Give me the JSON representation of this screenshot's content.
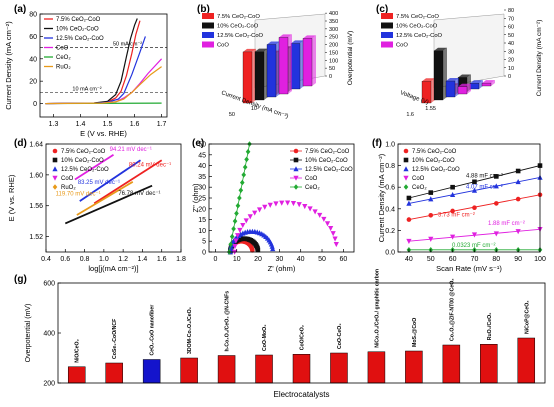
{
  "figure": {
    "panels": [
      "(a)",
      "(b)",
      "(c)",
      "(d)",
      "(e)",
      "(f)",
      "(g)"
    ]
  },
  "colors": {
    "CoO": "#e020e0",
    "7.5%": "#ee2222",
    "10%": "#111111",
    "12.5%": "#2233dd",
    "CeO2": "#22aa33",
    "RuO2": "#e89a1a",
    "other": "#e01010",
    "this_work": "#1414cc"
  },
  "chart_data": [
    {
      "panel": "(a)",
      "type": "line",
      "xlabel": "E (V vs. RHE)",
      "ylabel": "Current Density (mA cm⁻²)",
      "xlim": [
        1.25,
        1.72
      ],
      "ylim": [
        -12,
        80
      ],
      "xticks": [
        "1.3",
        "1.4",
        "1.5",
        "1.6",
        "1.7"
      ],
      "yticks": [
        "0",
        "20",
        "40",
        "60",
        "80"
      ],
      "legend_position": "top-left",
      "annotations": [
        "50 mA cm⁻²",
        "10 mA cm⁻²"
      ],
      "ref_lines": [
        50,
        10
      ],
      "series": [
        {
          "name": "7.5% CeO₂-CoO",
          "color_key": "7.5%",
          "points": [
            [
              1.27,
              0
            ],
            [
              1.45,
              0.4
            ],
            [
              1.5,
              1.5
            ],
            [
              1.53,
              5
            ],
            [
              1.55,
              11
            ],
            [
              1.57,
              25
            ],
            [
              1.59,
              45
            ],
            [
              1.605,
              62
            ],
            [
              1.62,
              74
            ]
          ]
        },
        {
          "name": "10% CeO₂-CoO",
          "color_key": "10%",
          "points": [
            [
              1.27,
              0
            ],
            [
              1.45,
              0.5
            ],
            [
              1.5,
              2
            ],
            [
              1.53,
              8
            ],
            [
              1.55,
              20
            ],
            [
              1.57,
              42
            ],
            [
              1.585,
              58
            ],
            [
              1.6,
              70
            ],
            [
              1.61,
              76
            ]
          ]
        },
        {
          "name": "12.5% CeO₂-CoO",
          "color_key": "12.5%",
          "points": [
            [
              1.27,
              0
            ],
            [
              1.45,
              0.3
            ],
            [
              1.5,
              1.2
            ],
            [
              1.54,
              4
            ],
            [
              1.56,
              9
            ],
            [
              1.59,
              26
            ],
            [
              1.62,
              46
            ],
            [
              1.64,
              60
            ]
          ]
        },
        {
          "name": "CoO",
          "color_key": "CoO",
          "points": [
            [
              1.27,
              0
            ],
            [
              1.48,
              0.4
            ],
            [
              1.53,
              1.5
            ],
            [
              1.56,
              5
            ],
            [
              1.59,
              10
            ],
            [
              1.62,
              18
            ],
            [
              1.65,
              27
            ],
            [
              1.7,
              40
            ]
          ]
        },
        {
          "name": "CeO₂",
          "color_key": "CeO2",
          "points": [
            [
              1.27,
              0
            ],
            [
              1.7,
              0.4
            ]
          ]
        },
        {
          "name": "RuO₂",
          "color_key": "RuO2",
          "points": [
            [
              1.27,
              0
            ],
            [
              1.48,
              0.4
            ],
            [
              1.53,
              1.5
            ],
            [
              1.56,
              4
            ],
            [
              1.59,
              10
            ],
            [
              1.62,
              17
            ],
            [
              1.66,
              26
            ],
            [
              1.7,
              33
            ]
          ]
        }
      ]
    },
    {
      "panel": "(b)",
      "type": "bar3d",
      "ylabel": "Overpotential (mV)",
      "xlabel": "Current Density (mA cm⁻²)",
      "zticks": [
        "0",
        "50",
        "100",
        "150",
        "200",
        "250",
        "300",
        "350",
        "400"
      ],
      "categories": [
        "10",
        "50"
      ],
      "legend_position": "top-left",
      "series": [
        {
          "name": "7.5% CeO₂-CoO",
          "color_key": "7.5%",
          "values": [
            300,
            370
          ]
        },
        {
          "name": "10% CeO₂-CoO",
          "color_key": "10%",
          "values": [
            310,
            350
          ]
        },
        {
          "name": "12.5% CeO₂-CoO",
          "color_key": "12.5%",
          "values": [
            330,
            380
          ]
        },
        {
          "name": "CoO",
          "color_key": "CoO",
          "values": [
            345,
            410
          ]
        }
      ]
    },
    {
      "panel": "(c)",
      "type": "bar3d",
      "ylabel": "Current Density (mA cm⁻²)",
      "xlabel": "Voltage (V)",
      "zticks": [
        "0",
        "10",
        "20",
        "30",
        "40",
        "50",
        "60",
        "70",
        "80"
      ],
      "categories": [
        "1.55",
        "1.6"
      ],
      "legend_position": "top-left",
      "series": [
        {
          "name": "7.5% CeO₂-CoO",
          "color_key": "7.5%",
          "values": [
            12,
            30
          ]
        },
        {
          "name": "10% CeO₂-CoO",
          "color_key": "10%",
          "values": [
            20,
            68
          ]
        },
        {
          "name": "12.5% CeO₂-CoO",
          "color_key": "12.5%",
          "values": [
            8,
            22
          ]
        },
        {
          "name": "CoO",
          "color_key": "CoO",
          "values": [
            4,
            10
          ]
        }
      ]
    },
    {
      "panel": "(d)",
      "type": "line",
      "xlabel": "log[j(mA cm⁻²)]",
      "ylabel": "E (V vs. RHE)",
      "xlim": [
        0.4,
        1.8
      ],
      "ylim": [
        1.5,
        1.64
      ],
      "xticks": [
        "0.4",
        "0.6",
        "0.8",
        "1.0",
        "1.2",
        "1.4",
        "1.6",
        "1.8"
      ],
      "yticks": [
        "1.52",
        "1.56",
        "1.60",
        "1.64"
      ],
      "legend_position": "top-left",
      "series": [
        {
          "name": "7.5% CeO₂-CoO",
          "color_key": "7.5%",
          "slope_label": "80.24 mV dec⁻¹",
          "points": [
            [
              0.9,
              1.563
            ],
            [
              1.6,
              1.619
            ]
          ]
        },
        {
          "name": "10% CeO₂-CoO",
          "color_key": "10%",
          "slope_label": "76.78 mV dec⁻¹",
          "points": [
            [
              0.6,
              1.537
            ],
            [
              1.5,
              1.586
            ]
          ]
        },
        {
          "name": "12.5% CeO₂-CoO",
          "color_key": "12.5%",
          "slope_label": "83.25 mV dec⁻¹",
          "points": [
            [
              0.75,
              1.566
            ],
            [
              1.38,
              1.619
            ]
          ]
        },
        {
          "name": "CoO",
          "color_key": "CoO",
          "slope_label": "94.21 mV dec⁻¹",
          "points": [
            [
              0.7,
              1.594
            ],
            [
              1.1,
              1.626
            ]
          ]
        },
        {
          "name": "RuO₂",
          "color_key": "RuO2",
          "slope_label": "119.70 mV dec⁻¹",
          "points": [
            [
              0.72,
              1.548
            ],
            [
              1.3,
              1.591
            ]
          ]
        }
      ]
    },
    {
      "panel": "(e)",
      "type": "scatter",
      "xlabel": "Z' (ohm)",
      "ylabel": "Z\" (ohm)",
      "xlim": [
        -3,
        65
      ],
      "ylim": [
        0,
        50
      ],
      "xticks": [
        "0",
        "10",
        "20",
        "30",
        "40",
        "50",
        "60"
      ],
      "yticks": [
        "0",
        "5",
        "10",
        "15",
        "20",
        "25",
        "30",
        "35",
        "40",
        "45",
        "50"
      ],
      "legend_position": "top-right",
      "series": [
        {
          "name": "7.5% CeO₂-CoO",
          "color_key": "7.5%",
          "center": 12.2,
          "radius": 5.2
        },
        {
          "name": "10% CeO₂-CoO",
          "color_key": "10%",
          "center": 13.5,
          "radius": 6.5
        },
        {
          "name": "12.5% CeO₂-CoO",
          "color_key": "12.5%",
          "center": 17.0,
          "radius": 10.0
        },
        {
          "name": "CoO",
          "color_key": "CoO",
          "center": 33.0,
          "radius": 24.0
        },
        {
          "name": "CeO₂",
          "color_key": "CeO2",
          "line": [
            [
              6.5,
              0
            ],
            [
              16,
              50
            ]
          ]
        }
      ]
    },
    {
      "panel": "(f)",
      "type": "scatter",
      "xlabel": "Scan Rate (mV s⁻¹)",
      "ylabel": "Current Density (mA cm⁻²)",
      "xlim": [
        35,
        100
      ],
      "ylim": [
        0,
        1.0
      ],
      "xticks": [
        "40",
        "50",
        "60",
        "70",
        "80",
        "90",
        "100"
      ],
      "yticks": [
        "0.0",
        "0.2",
        "0.4",
        "0.6",
        "0.8",
        "1.0"
      ],
      "legend_position": "top-left",
      "series": [
        {
          "name": "7.5% CeO₂-CoO",
          "color_key": "7.5%",
          "label": "3.73 mF cm⁻²",
          "x": [
            40,
            50,
            60,
            70,
            80,
            90,
            100
          ],
          "y": [
            0.3,
            0.34,
            0.38,
            0.41,
            0.45,
            0.49,
            0.53
          ]
        },
        {
          "name": "10% CeO₂-CoO",
          "color_key": "10%",
          "label": "4.88 mF cm⁻²",
          "x": [
            40,
            50,
            60,
            70,
            80,
            90,
            100
          ],
          "y": [
            0.5,
            0.55,
            0.6,
            0.65,
            0.7,
            0.75,
            0.8
          ]
        },
        {
          "name": "12.5% CeO₂-CoO",
          "color_key": "12.5%",
          "label": "4.07 mF cm⁻²",
          "x": [
            40,
            50,
            60,
            70,
            80,
            90,
            100
          ],
          "y": [
            0.45,
            0.49,
            0.53,
            0.57,
            0.61,
            0.65,
            0.69
          ]
        },
        {
          "name": "CoO",
          "color_key": "CoO",
          "label": "1.88 mF cm⁻²",
          "x": [
            40,
            50,
            60,
            70,
            80,
            90,
            100
          ],
          "y": [
            0.1,
            0.12,
            0.14,
            0.16,
            0.17,
            0.19,
            0.21
          ]
        },
        {
          "name": "CeO₂",
          "color_key": "CeO2",
          "label": "0.0323 mF cm⁻²",
          "x": [
            40,
            50,
            60,
            70,
            80,
            90,
            100
          ],
          "y": [
            0.02,
            0.02,
            0.02,
            0.02,
            0.02,
            0.02,
            0.02
          ]
        }
      ]
    },
    {
      "panel": "(g)",
      "type": "bar",
      "xlabel": "Electrocatalysts",
      "ylabel": "Overpotential (mV)",
      "ylim": [
        200,
        600
      ],
      "yticks": [
        "200",
        "400",
        "600"
      ],
      "highlight_index": 2,
      "categories": [
        "NiO/CeO₂",
        "CoSe₂-CoO/NCF",
        "CeO₂-CoO nanofiber",
        "3DOM-Co₃O₄/CeO₂",
        "h-Co₃O₄/CeO₂ @N-CNFs",
        "CoO-MoO₂",
        "CoO/CeO₂",
        "CoO-CeO₂",
        "NiCo₂O₄/CeO₂/ graphitic carbon",
        "MoS₂@CoO",
        "Co₃O₄@ZIF-NT00 @CeO₂",
        "RuO₂/CeO₂",
        "NiCoP@CeO₂"
      ],
      "values": [
        265,
        280,
        294,
        300,
        310,
        312,
        315,
        320,
        325,
        328,
        352,
        355,
        380
      ]
    }
  ]
}
